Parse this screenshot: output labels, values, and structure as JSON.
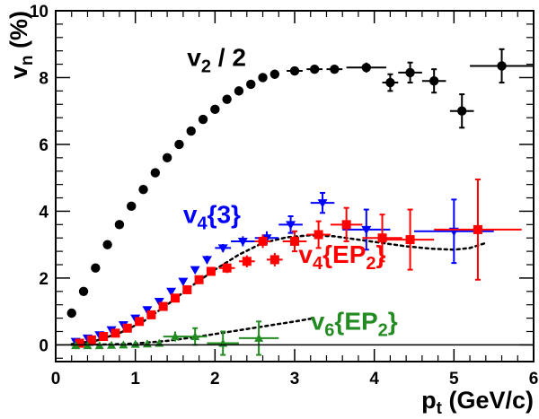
{
  "chart_data": {
    "type": "scatter",
    "title": "",
    "xlabel": "p",
    "xlabel_sub": "t",
    "xlabel_unit": " (GeV/c)",
    "ylabel": "v",
    "ylabel_sub": "n",
    "ylabel_unit": " (%)",
    "xlim": [
      0,
      6
    ],
    "ylim": [
      -0.5,
      10
    ],
    "xticks": [
      0,
      1,
      2,
      3,
      4,
      5,
      6
    ],
    "yticks": [
      0,
      2,
      4,
      6,
      8,
      10
    ],
    "x_tick_labels": [
      "0",
      "1",
      "2",
      "3",
      "4",
      "5",
      "6"
    ],
    "y_tick_labels": [
      "0",
      "2",
      "4",
      "6",
      "8",
      "10"
    ],
    "grid": false,
    "series": [
      {
        "name": "v2/2",
        "label_main": "v",
        "label_sub": "2",
        "label_rest": " / 2",
        "color": "#000000",
        "marker": "circle",
        "points": [
          {
            "x": 0.2,
            "y": 0.95,
            "xe": 0.0,
            "ye": 0.08
          },
          {
            "x": 0.35,
            "y": 1.6,
            "xe": 0.0,
            "ye": 0.08
          },
          {
            "x": 0.5,
            "y": 2.3,
            "xe": 0.0,
            "ye": 0.08
          },
          {
            "x": 0.65,
            "y": 3.0,
            "xe": 0.0,
            "ye": 0.08
          },
          {
            "x": 0.8,
            "y": 3.6,
            "xe": 0.0,
            "ye": 0.08
          },
          {
            "x": 0.95,
            "y": 4.15,
            "xe": 0.0,
            "ye": 0.08
          },
          {
            "x": 1.1,
            "y": 4.65,
            "xe": 0.0,
            "ye": 0.08
          },
          {
            "x": 1.25,
            "y": 5.15,
            "xe": 0.0,
            "ye": 0.08
          },
          {
            "x": 1.4,
            "y": 5.6,
            "xe": 0.0,
            "ye": 0.08
          },
          {
            "x": 1.55,
            "y": 6.0,
            "xe": 0.0,
            "ye": 0.08
          },
          {
            "x": 1.7,
            "y": 6.4,
            "xe": 0.0,
            "ye": 0.08
          },
          {
            "x": 1.85,
            "y": 6.75,
            "xe": 0.0,
            "ye": 0.08
          },
          {
            "x": 2.0,
            "y": 7.05,
            "xe": 0.0,
            "ye": 0.08
          },
          {
            "x": 2.15,
            "y": 7.35,
            "xe": 0.0,
            "ye": 0.08
          },
          {
            "x": 2.3,
            "y": 7.6,
            "xe": 0.0,
            "ye": 0.08
          },
          {
            "x": 2.45,
            "y": 7.8,
            "xe": 0.0,
            "ye": 0.08
          },
          {
            "x": 2.6,
            "y": 8.0,
            "xe": 0.0,
            "ye": 0.08
          },
          {
            "x": 2.75,
            "y": 8.1,
            "xe": 0.0,
            "ye": 0.08
          },
          {
            "x": 3.0,
            "y": 8.2,
            "xe": 0.1,
            "ye": 0.08
          },
          {
            "x": 3.25,
            "y": 8.25,
            "xe": 0.1,
            "ye": 0.08
          },
          {
            "x": 3.5,
            "y": 8.25,
            "xe": 0.1,
            "ye": 0.1
          },
          {
            "x": 3.9,
            "y": 8.3,
            "xe": 0.25,
            "ye": 0.15
          },
          {
            "x": 4.2,
            "y": 7.85,
            "xe": 0.1,
            "ye": 0.25
          },
          {
            "x": 4.45,
            "y": 8.15,
            "xe": 0.15,
            "ye": 0.3
          },
          {
            "x": 4.75,
            "y": 7.9,
            "xe": 0.15,
            "ye": 0.35
          },
          {
            "x": 5.1,
            "y": 7.0,
            "xe": 0.15,
            "ye": 0.5
          },
          {
            "x": 5.6,
            "y": 8.35,
            "xe": 0.4,
            "ye": 0.5
          }
        ]
      },
      {
        "name": "v4{3}",
        "label_main": "v",
        "label_sub": "4",
        "label_rest": "{3}",
        "color": "#0000ff",
        "marker": "triangle-down",
        "points": [
          {
            "x": 0.25,
            "y": 0.1,
            "xe": 0.0,
            "ye": 0.05
          },
          {
            "x": 0.4,
            "y": 0.2,
            "xe": 0.0,
            "ye": 0.05
          },
          {
            "x": 0.55,
            "y": 0.3,
            "xe": 0.0,
            "ye": 0.05
          },
          {
            "x": 0.7,
            "y": 0.45,
            "xe": 0.0,
            "ye": 0.05
          },
          {
            "x": 0.85,
            "y": 0.6,
            "xe": 0.0,
            "ye": 0.05
          },
          {
            "x": 1.0,
            "y": 0.8,
            "xe": 0.0,
            "ye": 0.06
          },
          {
            "x": 1.15,
            "y": 1.05,
            "xe": 0.0,
            "ye": 0.06
          },
          {
            "x": 1.3,
            "y": 1.3,
            "xe": 0.0,
            "ye": 0.06
          },
          {
            "x": 1.45,
            "y": 1.6,
            "xe": 0.0,
            "ye": 0.07
          },
          {
            "x": 1.6,
            "y": 1.9,
            "xe": 0.0,
            "ye": 0.08
          },
          {
            "x": 1.75,
            "y": 2.25,
            "xe": 0.0,
            "ye": 0.1
          },
          {
            "x": 1.9,
            "y": 2.55,
            "xe": 0.0,
            "ye": 0.12
          },
          {
            "x": 2.1,
            "y": 2.9,
            "xe": 0.1,
            "ye": 0.12
          },
          {
            "x": 2.35,
            "y": 3.1,
            "xe": 0.15,
            "ye": 0.15
          },
          {
            "x": 2.65,
            "y": 3.2,
            "xe": 0.15,
            "ye": 0.2
          },
          {
            "x": 2.95,
            "y": 3.6,
            "xe": 0.15,
            "ye": 0.25
          },
          {
            "x": 3.35,
            "y": 4.25,
            "xe": 0.15,
            "ye": 0.3
          },
          {
            "x": 3.9,
            "y": 3.45,
            "xe": 0.3,
            "ye": 0.6
          },
          {
            "x": 5.0,
            "y": 3.4,
            "xe": 0.5,
            "ye": 0.95
          }
        ]
      },
      {
        "name": "v4{EP2}",
        "label_main": "v",
        "label_sub": "4",
        "label_rest": "{EP",
        "label_sub2": "2",
        "label_end": "}",
        "color": "#ff0000",
        "marker": "square",
        "points": [
          {
            "x": 0.3,
            "y": 0.05,
            "xe": 0.0,
            "ye": 0.05
          },
          {
            "x": 0.45,
            "y": 0.15,
            "xe": 0.0,
            "ye": 0.05
          },
          {
            "x": 0.6,
            "y": 0.25,
            "xe": 0.0,
            "ye": 0.05
          },
          {
            "x": 0.75,
            "y": 0.35,
            "xe": 0.0,
            "ye": 0.05
          },
          {
            "x": 0.9,
            "y": 0.5,
            "xe": 0.0,
            "ye": 0.05
          },
          {
            "x": 1.05,
            "y": 0.7,
            "xe": 0.0,
            "ye": 0.05
          },
          {
            "x": 1.2,
            "y": 0.9,
            "xe": 0.0,
            "ye": 0.06
          },
          {
            "x": 1.35,
            "y": 1.15,
            "xe": 0.0,
            "ye": 0.06
          },
          {
            "x": 1.5,
            "y": 1.4,
            "xe": 0.0,
            "ye": 0.07
          },
          {
            "x": 1.65,
            "y": 1.65,
            "xe": 0.0,
            "ye": 0.08
          },
          {
            "x": 1.8,
            "y": 1.95,
            "xe": 0.0,
            "ye": 0.1
          },
          {
            "x": 1.95,
            "y": 2.2,
            "xe": 0.0,
            "ye": 0.12
          },
          {
            "x": 2.15,
            "y": 2.3,
            "xe": 0.1,
            "ye": 0.15
          },
          {
            "x": 2.4,
            "y": 2.5,
            "xe": 0.1,
            "ye": 0.18
          },
          {
            "x": 2.6,
            "y": 3.1,
            "xe": 0.1,
            "ye": 0.2
          },
          {
            "x": 2.75,
            "y": 2.55,
            "xe": 0.1,
            "ye": 0.2
          },
          {
            "x": 3.0,
            "y": 3.1,
            "xe": 0.15,
            "ye": 0.3
          },
          {
            "x": 3.3,
            "y": 3.3,
            "xe": 0.15,
            "ye": 0.4
          },
          {
            "x": 3.65,
            "y": 3.6,
            "xe": 0.2,
            "ye": 0.5
          },
          {
            "x": 4.1,
            "y": 3.2,
            "xe": 0.25,
            "ye": 0.7
          },
          {
            "x": 4.45,
            "y": 3.15,
            "xe": 0.3,
            "ye": 0.9
          },
          {
            "x": 5.3,
            "y": 3.45,
            "xe": 0.55,
            "ye": 1.5
          }
        ]
      },
      {
        "name": "v6{EP2}",
        "label_main": "v",
        "label_sub": "6",
        "label_rest": "{EP",
        "label_sub2": "2",
        "label_end": "}",
        "color": "#228b22",
        "marker": "triangle-up",
        "points": [
          {
            "x": 0.25,
            "y": -0.02,
            "xe": 0.0,
            "ye": 0.04
          },
          {
            "x": 0.4,
            "y": -0.02,
            "xe": 0.0,
            "ye": 0.04
          },
          {
            "x": 0.55,
            "y": -0.02,
            "xe": 0.0,
            "ye": 0.04
          },
          {
            "x": 0.7,
            "y": -0.01,
            "xe": 0.0,
            "ye": 0.04
          },
          {
            "x": 0.85,
            "y": 0.0,
            "xe": 0.0,
            "ye": 0.05
          },
          {
            "x": 1.0,
            "y": 0.02,
            "xe": 0.0,
            "ye": 0.05
          },
          {
            "x": 1.15,
            "y": 0.03,
            "xe": 0.0,
            "ye": 0.06
          },
          {
            "x": 1.3,
            "y": 0.05,
            "xe": 0.0,
            "ye": 0.07
          },
          {
            "x": 1.5,
            "y": 0.25,
            "xe": 0.15,
            "ye": 0.15
          },
          {
            "x": 1.75,
            "y": 0.25,
            "xe": 0.15,
            "ye": 0.25
          },
          {
            "x": 2.1,
            "y": 0.05,
            "xe": 0.2,
            "ye": 0.35
          },
          {
            "x": 2.55,
            "y": 0.2,
            "xe": 0.25,
            "ye": 0.5
          }
        ]
      }
    ],
    "curves": [
      {
        "name": "v4 model",
        "color": "#000000",
        "dash": "dotted",
        "points": [
          [
            0.2,
            0.02
          ],
          [
            0.5,
            0.12
          ],
          [
            0.8,
            0.35
          ],
          [
            1.1,
            0.7
          ],
          [
            1.4,
            1.2
          ],
          [
            1.7,
            1.75
          ],
          [
            2.0,
            2.25
          ],
          [
            2.3,
            2.7
          ],
          [
            2.6,
            3.05
          ],
          [
            2.9,
            3.22
          ],
          [
            3.2,
            3.28
          ],
          [
            3.5,
            3.25
          ],
          [
            3.8,
            3.15
          ],
          [
            4.1,
            3.05
          ],
          [
            4.4,
            2.95
          ],
          [
            4.7,
            2.88
          ],
          [
            5.0,
            2.85
          ],
          [
            5.2,
            2.9
          ],
          [
            5.4,
            3.05
          ]
        ]
      },
      {
        "name": "v6 model",
        "color": "#000000",
        "dash": "dotted",
        "points": [
          [
            0.2,
            0.0
          ],
          [
            0.6,
            0.01
          ],
          [
            1.0,
            0.04
          ],
          [
            1.4,
            0.12
          ],
          [
            1.8,
            0.25
          ],
          [
            2.2,
            0.4
          ],
          [
            2.6,
            0.55
          ],
          [
            3.0,
            0.7
          ],
          [
            3.2,
            0.78
          ]
        ]
      }
    ],
    "annotations": [
      {
        "series": 0,
        "x": 1.65,
        "y": 8.35
      },
      {
        "series": 1,
        "x": 1.6,
        "y": 3.65
      },
      {
        "series": 2,
        "x": 3.05,
        "y": 2.45
      },
      {
        "series": 3,
        "x": 3.2,
        "y": 0.45
      }
    ]
  }
}
